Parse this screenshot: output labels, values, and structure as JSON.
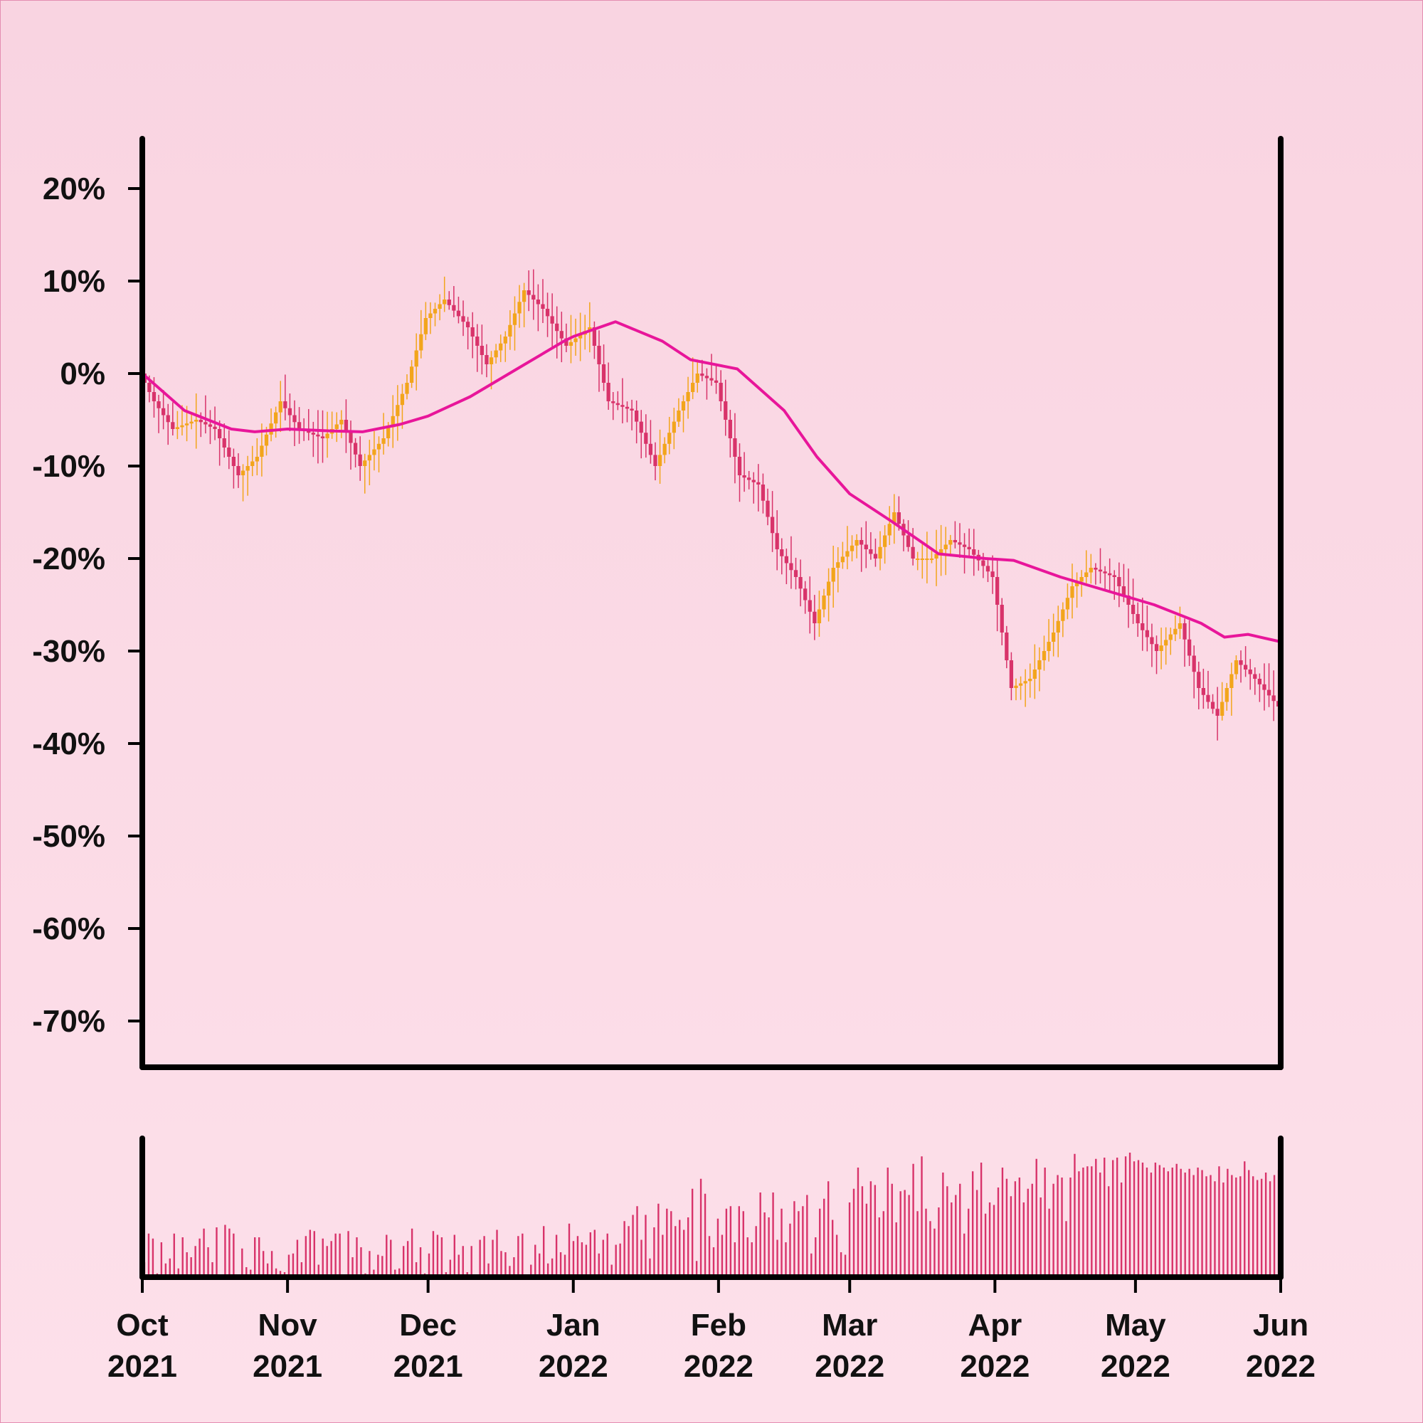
{
  "chart_data": {
    "type": "candlestick",
    "title": "",
    "xlabel": "",
    "ylabel": "",
    "ylim": [
      -75,
      25
    ],
    "y_tick_labels": [
      "20%",
      "10%",
      "0%",
      "-10%",
      "-20%",
      "-30%",
      "-40%",
      "-50%",
      "-60%",
      "-70%"
    ],
    "y_tick_values": [
      20,
      10,
      0,
      -10,
      -20,
      -30,
      -40,
      -50,
      -60,
      -70
    ],
    "x_range": [
      "2021-10-01",
      "2022-06-01"
    ],
    "x_ticks": [
      {
        "date": "2021-10-01",
        "month": "Oct",
        "year": "2021"
      },
      {
        "date": "2021-11-01",
        "month": "Nov",
        "year": "2021"
      },
      {
        "date": "2021-12-01",
        "month": "Dec",
        "year": "2021"
      },
      {
        "date": "2022-01-01",
        "month": "Jan",
        "year": "2022"
      },
      {
        "date": "2022-02-01",
        "month": "Feb",
        "year": "2022"
      },
      {
        "date": "2022-03-01",
        "month": "Mar",
        "year": "2022"
      },
      {
        "date": "2022-04-01",
        "month": "Apr",
        "year": "2022"
      },
      {
        "date": "2022-05-01",
        "month": "May",
        "year": "2022"
      },
      {
        "date": "2022-06-01",
        "month": "Jun",
        "year": "2022"
      }
    ],
    "price_path": [
      {
        "date": "2021-10-01",
        "value": 0
      },
      {
        "date": "2021-10-04",
        "value": -3
      },
      {
        "date": "2021-10-08",
        "value": -6
      },
      {
        "date": "2021-10-13",
        "value": -5
      },
      {
        "date": "2021-10-17",
        "value": -6
      },
      {
        "date": "2021-10-22",
        "value": -11
      },
      {
        "date": "2021-10-26",
        "value": -9
      },
      {
        "date": "2021-10-31",
        "value": -3
      },
      {
        "date": "2021-11-04",
        "value": -6
      },
      {
        "date": "2021-11-09",
        "value": -7
      },
      {
        "date": "2021-11-13",
        "value": -5
      },
      {
        "date": "2021-11-17",
        "value": -10
      },
      {
        "date": "2021-11-22",
        "value": -7
      },
      {
        "date": "2021-11-27",
        "value": -1
      },
      {
        "date": "2021-12-01",
        "value": 6
      },
      {
        "date": "2021-12-05",
        "value": 8
      },
      {
        "date": "2021-12-10",
        "value": 5
      },
      {
        "date": "2021-12-14",
        "value": 1
      },
      {
        "date": "2021-12-18",
        "value": 4
      },
      {
        "date": "2021-12-22",
        "value": 9
      },
      {
        "date": "2021-12-26",
        "value": 7
      },
      {
        "date": "2021-12-31",
        "value": 3
      },
      {
        "date": "2022-01-05",
        "value": 5
      },
      {
        "date": "2022-01-09",
        "value": -3
      },
      {
        "date": "2022-01-14",
        "value": -4
      },
      {
        "date": "2022-01-19",
        "value": -10
      },
      {
        "date": "2022-01-24",
        "value": -4
      },
      {
        "date": "2022-01-28",
        "value": 0
      },
      {
        "date": "2022-02-01",
        "value": -1
      },
      {
        "date": "2022-02-06",
        "value": -11
      },
      {
        "date": "2022-02-10",
        "value": -12
      },
      {
        "date": "2022-02-14",
        "value": -19
      },
      {
        "date": "2022-02-18",
        "value": -22
      },
      {
        "date": "2022-02-22",
        "value": -27
      },
      {
        "date": "2022-02-26",
        "value": -21
      },
      {
        "date": "2022-03-03",
        "value": -18
      },
      {
        "date": "2022-03-07",
        "value": -20
      },
      {
        "date": "2022-03-11",
        "value": -15
      },
      {
        "date": "2022-03-15",
        "value": -20
      },
      {
        "date": "2022-03-19",
        "value": -20
      },
      {
        "date": "2022-03-23",
        "value": -18
      },
      {
        "date": "2022-03-27",
        "value": -19
      },
      {
        "date": "2022-04-01",
        "value": -22
      },
      {
        "date": "2022-04-05",
        "value": -34
      },
      {
        "date": "2022-04-09",
        "value": -33
      },
      {
        "date": "2022-04-14",
        "value": -28
      },
      {
        "date": "2022-04-18",
        "value": -23
      },
      {
        "date": "2022-04-22",
        "value": -21
      },
      {
        "date": "2022-04-27",
        "value": -22
      },
      {
        "date": "2022-05-02",
        "value": -27
      },
      {
        "date": "2022-05-06",
        "value": -30
      },
      {
        "date": "2022-05-11",
        "value": -27
      },
      {
        "date": "2022-05-15",
        "value": -34
      },
      {
        "date": "2022-05-19",
        "value": -37
      },
      {
        "date": "2022-05-23",
        "value": -31
      },
      {
        "date": "2022-05-27",
        "value": -33
      },
      {
        "date": "2022-06-01",
        "value": -36
      }
    ],
    "moving_average": [
      {
        "date": "2021-10-01",
        "value": 0
      },
      {
        "date": "2021-10-10",
        "value": -4
      },
      {
        "date": "2021-10-20",
        "value": -6
      },
      {
        "date": "2021-10-25",
        "value": -6.3
      },
      {
        "date": "2021-11-01",
        "value": -6
      },
      {
        "date": "2021-11-10",
        "value": -6.2
      },
      {
        "date": "2021-11-17",
        "value": -6.3
      },
      {
        "date": "2021-11-25",
        "value": -5.5
      },
      {
        "date": "2021-12-01",
        "value": -4.6
      },
      {
        "date": "2021-12-10",
        "value": -2.5
      },
      {
        "date": "2021-12-20",
        "value": 0.5
      },
      {
        "date": "2021-12-30",
        "value": 3.5
      },
      {
        "date": "2022-01-01",
        "value": 4
      },
      {
        "date": "2022-01-10",
        "value": 5.6
      },
      {
        "date": "2022-01-20",
        "value": 3.5
      },
      {
        "date": "2022-01-26",
        "value": 1.5
      },
      {
        "date": "2022-02-05",
        "value": 0.5
      },
      {
        "date": "2022-02-15",
        "value": -4
      },
      {
        "date": "2022-02-22",
        "value": -9
      },
      {
        "date": "2022-03-01",
        "value": -13
      },
      {
        "date": "2022-03-10",
        "value": -16
      },
      {
        "date": "2022-03-20",
        "value": -19.5
      },
      {
        "date": "2022-03-30",
        "value": -20
      },
      {
        "date": "2022-04-05",
        "value": -20.2
      },
      {
        "date": "2022-04-15",
        "value": -22
      },
      {
        "date": "2022-04-25",
        "value": -23.5
      },
      {
        "date": "2022-05-05",
        "value": -25
      },
      {
        "date": "2022-05-15",
        "value": -27
      },
      {
        "date": "2022-05-20",
        "value": -28.5
      },
      {
        "date": "2022-05-25",
        "value": -28.2
      },
      {
        "date": "2022-06-01",
        "value": -29
      }
    ],
    "volume": [
      12,
      35,
      31,
      3,
      28,
      11,
      15,
      35,
      7,
      32,
      20,
      16,
      25,
      31,
      39,
      24,
      12,
      40,
      2,
      42,
      39,
      35,
      2,
      23,
      8,
      6,
      32,
      32,
      21,
      11,
      21,
      7,
      5,
      4,
      18,
      19,
      30,
      12,
      33,
      38,
      37,
      10,
      31,
      25,
      29,
      35,
      35,
      2,
      37,
      16,
      32,
      24,
      3,
      21,
      6,
      18,
      17,
      34,
      30,
      6,
      7,
      25,
      29,
      39,
      12,
      24,
      3,
      19,
      37,
      34,
      32,
      4,
      14,
      34,
      18,
      25,
      4,
      25,
      1,
      30,
      33,
      11,
      30,
      38,
      21,
      20,
      9,
      16,
      33,
      35,
      2,
      10,
      26,
      19,
      41,
      11,
      15,
      34,
      20,
      18,
      43,
      29,
      33,
      28,
      26,
      36,
      38,
      19,
      30,
      35,
      10,
      26,
      27,
      45,
      41,
      50,
      57,
      30,
      50,
      15,
      40,
      59,
      34,
      55,
      53,
      41,
      46,
      38,
      48,
      71,
      13,
      79,
      67,
      33,
      24,
      47,
      34,
      55,
      57,
      28,
      57,
      53,
      32,
      28,
      41,
      68,
      52,
      48,
      68,
      30,
      55,
      28,
      43,
      61,
      53,
      57,
      66,
      19,
      32,
      55,
      63,
      77,
      46,
      34,
      20,
      18,
      60,
      71,
      88,
      73,
      59,
      77,
      74,
      48,
      53,
      88,
      75,
      44,
      69,
      70,
      66,
      91,
      53,
      97,
      55,
      45,
      39,
      56,
      84,
      73,
      60,
      66,
      75,
      35,
      55,
      85,
      70,
      92,
      51,
      60,
      58,
      72,
      88,
      79,
      65,
      77,
      80,
      60,
      71,
      75,
      95,
      64,
      88,
      55,
      75,
      82,
      80,
      45,
      80,
      99,
      85,
      88,
      89,
      89,
      95,
      84,
      96,
      73,
      94,
      96,
      76,
      97,
      100,
      93,
      94,
      92,
      88,
      84,
      92,
      90,
      88,
      85,
      88,
      91,
      87,
      84,
      87,
      82,
      88,
      86,
      81,
      82,
      77,
      89,
      76,
      87,
      82,
      80,
      81,
      93,
      86,
      81,
      78,
      79,
      84,
      77,
      82,
      86
    ]
  },
  "colors": {
    "up_candle": "#f2a51c",
    "down_candle": "#d8336a",
    "moving_average": "#e8169a",
    "volume_bar": "#d8336a",
    "axis": "#000000"
  }
}
